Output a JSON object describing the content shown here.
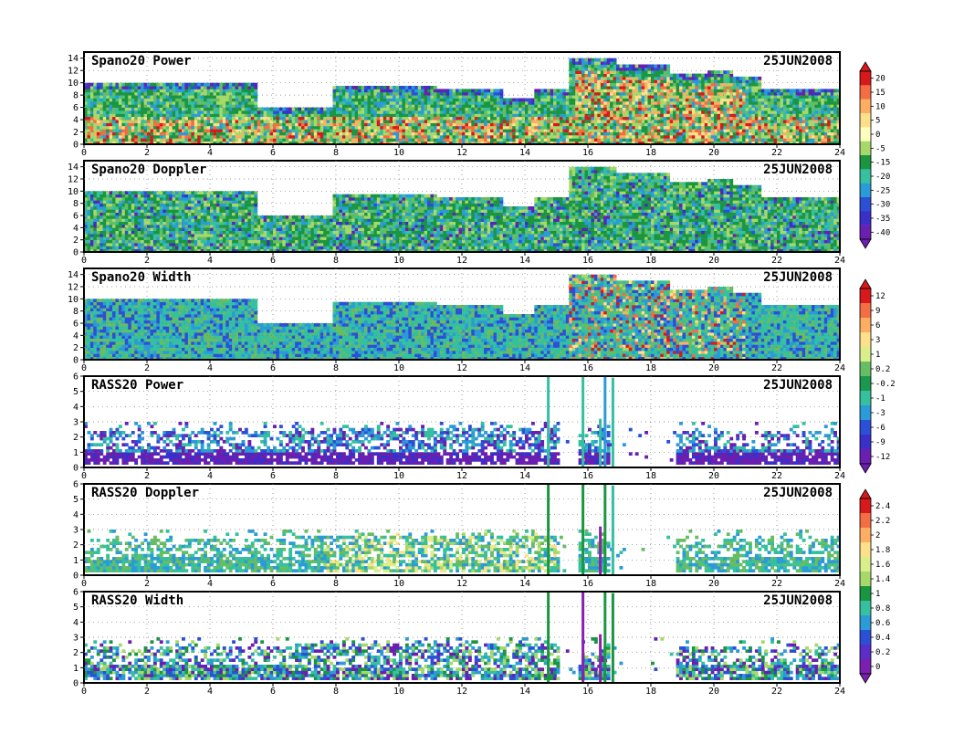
{
  "date_label": "25JUN2008",
  "x_axis": {
    "range": [
      0,
      24
    ],
    "tick_labels": [
      "0",
      "2",
      "4",
      "6",
      "8",
      "10",
      "12",
      "14",
      "16",
      "18",
      "20",
      "22",
      "24"
    ]
  },
  "chart_data": [
    {
      "type": "heatmap",
      "title": "Spano20 Power",
      "date": "25JUN2008",
      "x_range": [
        0,
        24
      ],
      "y_range": [
        0,
        15
      ],
      "y_tick_labels": [
        "0",
        "2",
        "4",
        "6",
        "8",
        "10",
        "12",
        "14"
      ],
      "colorbar": "power",
      "grid": true
    },
    {
      "type": "heatmap",
      "title": "Spano20 Doppler",
      "date": "25JUN2008",
      "x_range": [
        0,
        24
      ],
      "y_range": [
        0,
        15
      ],
      "y_tick_labels": [
        "0",
        "2",
        "4",
        "6",
        "8",
        "10",
        "12",
        "14"
      ],
      "colorbar": "power",
      "grid": true
    },
    {
      "type": "heatmap",
      "title": "Spano20 Width",
      "date": "25JUN2008",
      "x_range": [
        0,
        24
      ],
      "y_range": [
        0,
        15
      ],
      "y_tick_labels": [
        "0",
        "2",
        "4",
        "6",
        "8",
        "10",
        "12",
        "14"
      ],
      "colorbar": "doppler",
      "grid": true
    },
    {
      "type": "heatmap",
      "title": "RASS20 Power",
      "date": "25JUN2008",
      "x_range": [
        0,
        24
      ],
      "y_range": [
        0,
        6
      ],
      "y_tick_labels": [
        "0",
        "1",
        "2",
        "3",
        "4",
        "5",
        "6"
      ],
      "colorbar": "doppler",
      "grid": true
    },
    {
      "type": "heatmap",
      "title": "RASS20 Doppler",
      "date": "25JUN2008",
      "x_range": [
        0,
        24
      ],
      "y_range": [
        0,
        6
      ],
      "y_tick_labels": [
        "0",
        "1",
        "2",
        "3",
        "4",
        "5",
        "6"
      ],
      "colorbar": "width",
      "grid": true
    },
    {
      "type": "heatmap",
      "title": "RASS20 Width",
      "date": "25JUN2008",
      "x_range": [
        0,
        24
      ],
      "y_range": [
        0,
        6
      ],
      "y_tick_labels": [
        "0",
        "1",
        "2",
        "3",
        "4",
        "5",
        "6"
      ],
      "colorbar": "width",
      "grid": true
    }
  ],
  "colorbars": {
    "power": {
      "labels": [
        "20",
        "15",
        "10",
        "5",
        "0",
        "-5",
        "-15",
        "-20",
        "-25",
        "-30",
        "-35",
        "-40"
      ],
      "colors": [
        "#d7191c",
        "#f46d43",
        "#fdae61",
        "#fee08b",
        "#ffffbf",
        "#a6d96a",
        "#1a9641",
        "#35c0a0",
        "#2b9bd8",
        "#2c4fd8",
        "#3b2fc9",
        "#6a1fb0"
      ]
    },
    "doppler": {
      "labels": [
        "12",
        "9",
        "6",
        "3",
        "1",
        "0.2",
        "-0.2",
        "-1",
        "-3",
        "-6",
        "-9",
        "-12"
      ],
      "colors": [
        "#d7191c",
        "#f46d43",
        "#fdae61",
        "#fee08b",
        "#d9ef8b",
        "#66bd63",
        "#1a9850",
        "#35c0a0",
        "#2b9bd8",
        "#2c4fd8",
        "#3b2fc9",
        "#6a1fb0"
      ]
    },
    "width": {
      "labels": [
        "2.4",
        "2.2",
        "2",
        "1.8",
        "1.6",
        "1.4",
        "1",
        "0.8",
        "0.6",
        "0.4",
        "0.2",
        "0"
      ],
      "colors": [
        "#d7191c",
        "#f46d43",
        "#fdae61",
        "#fee08b",
        "#d9ef8b",
        "#a6d96a",
        "#1a9641",
        "#35c0a0",
        "#2b9bd8",
        "#2c4fd8",
        "#5a2fc9",
        "#7a1fb0"
      ]
    }
  },
  "palettes": {
    "green_cyan": [
      "#1a9641",
      "#66bd63",
      "#35c0a0",
      "#2b9bd8",
      "#a6d96a",
      "#1a9641"
    ],
    "warm": [
      "#fee08b",
      "#fdae61",
      "#f46d43",
      "#d7191c",
      "#a6d96a"
    ],
    "blue_purple": [
      "#2c4fd8",
      "#6a1fb0",
      "#3b2fc9",
      "#2b9bd8"
    ],
    "rass": [
      "#2b9bd8",
      "#35c0a0",
      "#a6d96a",
      "#2c4fd8",
      "#6a1fb0",
      "#d9ef8b"
    ]
  }
}
